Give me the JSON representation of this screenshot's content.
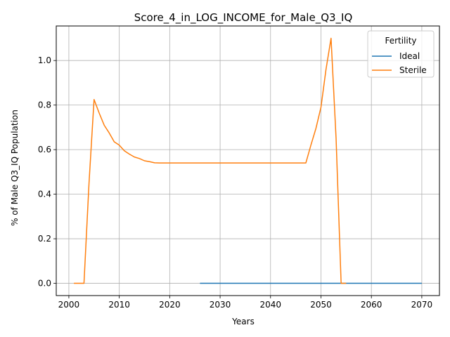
{
  "chart_data": {
    "type": "line",
    "title": "Score_4_in_LOG_INCOME_for_Male_Q3_IQ",
    "xlabel": "Years",
    "ylabel": "% of Male Q3_IQ Population",
    "xlim": [
      1997.5,
      2073.5
    ],
    "ylim": [
      -0.055,
      1.155
    ],
    "xticks": [
      2000,
      2010,
      2020,
      2030,
      2040,
      2050,
      2060,
      2070
    ],
    "yticks": [
      0.0,
      0.2,
      0.4,
      0.6,
      0.8,
      1.0
    ],
    "ytick_labels": [
      "0.0",
      "0.2",
      "0.4",
      "0.6",
      "0.8",
      "1.0"
    ],
    "grid": true,
    "legend": {
      "title": "Fertility",
      "placement": "top-right"
    },
    "series": [
      {
        "name": "Ideal",
        "color": "#1f77b4",
        "x": [
          2026,
          2030,
          2035,
          2040,
          2045,
          2050,
          2055,
          2060,
          2065,
          2070
        ],
        "y": [
          0,
          0,
          0,
          0,
          0,
          0,
          0,
          0,
          0,
          0
        ]
      },
      {
        "name": "Sterile",
        "color": "#ff7f0e",
        "x": [
          2001,
          2002,
          2003,
          2004,
          2005,
          2006,
          2007,
          2008,
          2009,
          2010,
          2011,
          2012,
          2013,
          2014,
          2015,
          2016,
          2017,
          2018,
          2020,
          2025,
          2030,
          2035,
          2040,
          2045,
          2047,
          2048,
          2049,
          2050,
          2051,
          2052,
          2053,
          2054,
          2055
        ],
        "y": [
          0,
          0,
          0,
          0.45,
          0.825,
          0.765,
          0.71,
          0.675,
          0.635,
          0.62,
          0.595,
          0.58,
          0.567,
          0.56,
          0.55,
          0.546,
          0.541,
          0.54,
          0.54,
          0.54,
          0.54,
          0.54,
          0.54,
          0.54,
          0.54,
          0.62,
          0.695,
          0.79,
          0.96,
          1.1,
          0.65,
          0,
          0
        ]
      }
    ]
  }
}
